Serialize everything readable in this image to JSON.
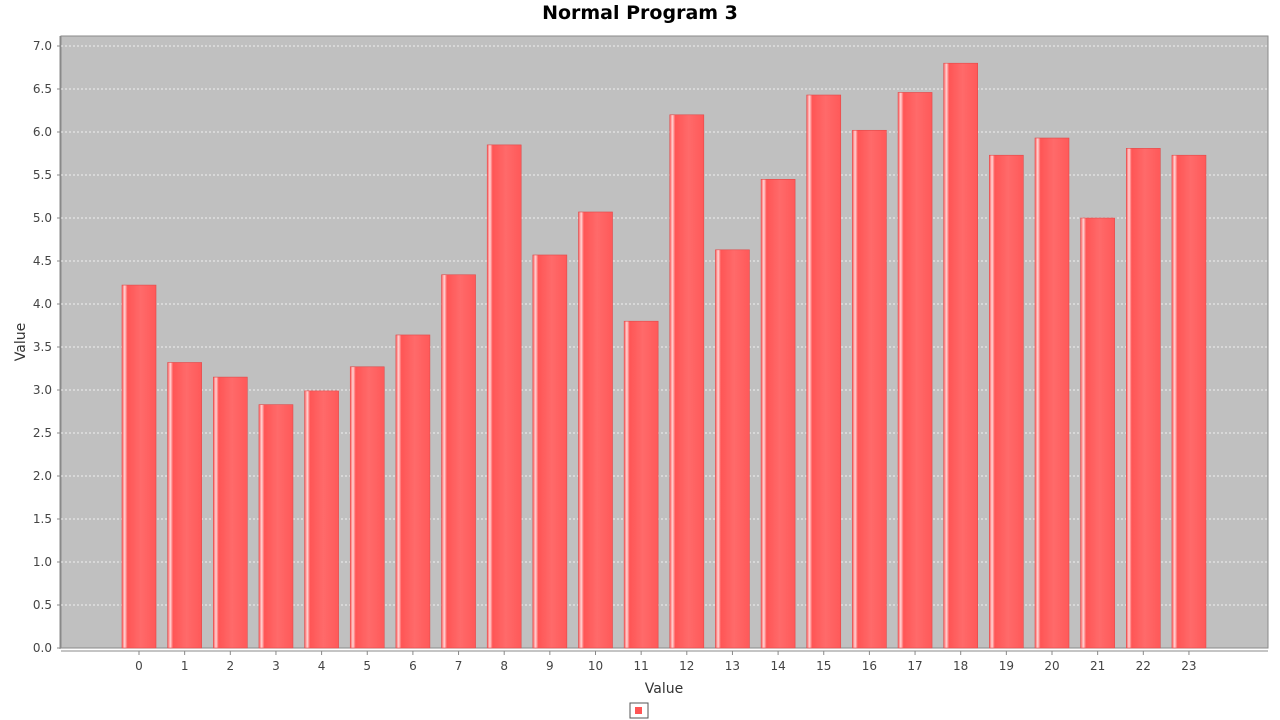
{
  "chart_data": {
    "type": "bar",
    "title": "Normal Program 3",
    "xlabel": "Value",
    "ylabel": "Value",
    "categories": [
      "0",
      "1",
      "2",
      "3",
      "4",
      "5",
      "6",
      "7",
      "8",
      "9",
      "10",
      "11",
      "12",
      "13",
      "14",
      "15",
      "16",
      "17",
      "18",
      "19",
      "20",
      "21",
      "22",
      "23"
    ],
    "series": [
      {
        "name": "",
        "values": [
          4.22,
          3.32,
          3.15,
          2.83,
          2.99,
          3.27,
          3.64,
          4.34,
          5.85,
          4.57,
          5.07,
          3.8,
          6.2,
          4.63,
          5.45,
          6.43,
          6.02,
          6.46,
          6.8,
          5.73,
          5.93,
          5.0,
          5.81,
          5.73
        ]
      }
    ],
    "ylim": [
      0,
      7.0
    ],
    "yticks": [
      "0.0",
      "0.5",
      "1.0",
      "1.5",
      "2.0",
      "2.5",
      "3.0",
      "3.5",
      "4.0",
      "4.5",
      "5.0",
      "5.5",
      "6.0",
      "6.5",
      "7.0"
    ],
    "grid": true,
    "legend": "bottom-center",
    "colors": {
      "bar": "#ff5555",
      "bar_highlight": "#ffd0d0",
      "plot_background": "#c0c0c0",
      "gridline": "#ffffff"
    }
  }
}
